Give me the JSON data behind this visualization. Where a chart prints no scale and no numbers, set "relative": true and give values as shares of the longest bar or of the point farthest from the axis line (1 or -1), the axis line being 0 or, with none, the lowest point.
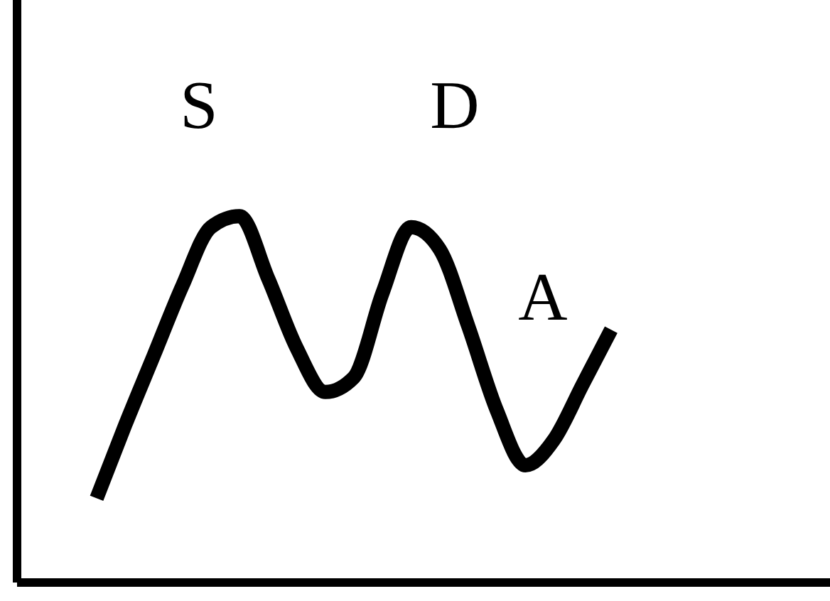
{
  "chart_data": {
    "type": "line",
    "relative": true,
    "categories": [
      null,
      null,
      null,
      null,
      null,
      null,
      null,
      null,
      null,
      null,
      null,
      null,
      null,
      null,
      null,
      null,
      null,
      null,
      null
    ],
    "series": [
      {
        "color": "#000000",
        "values": [
          0.23,
          0.43,
          0.62,
          0.81,
          0.97,
          1,
          0.83,
          0.64,
          0.52,
          0.56,
          0.79,
          0.97,
          0.91,
          0.7,
          0.47,
          0.32,
          0.39,
          0.54,
          0.69
        ]
      }
    ],
    "annotations": [
      "S",
      "D",
      "A"
    ],
    "marker": "none",
    "grid": false,
    "legend": false
  }
}
